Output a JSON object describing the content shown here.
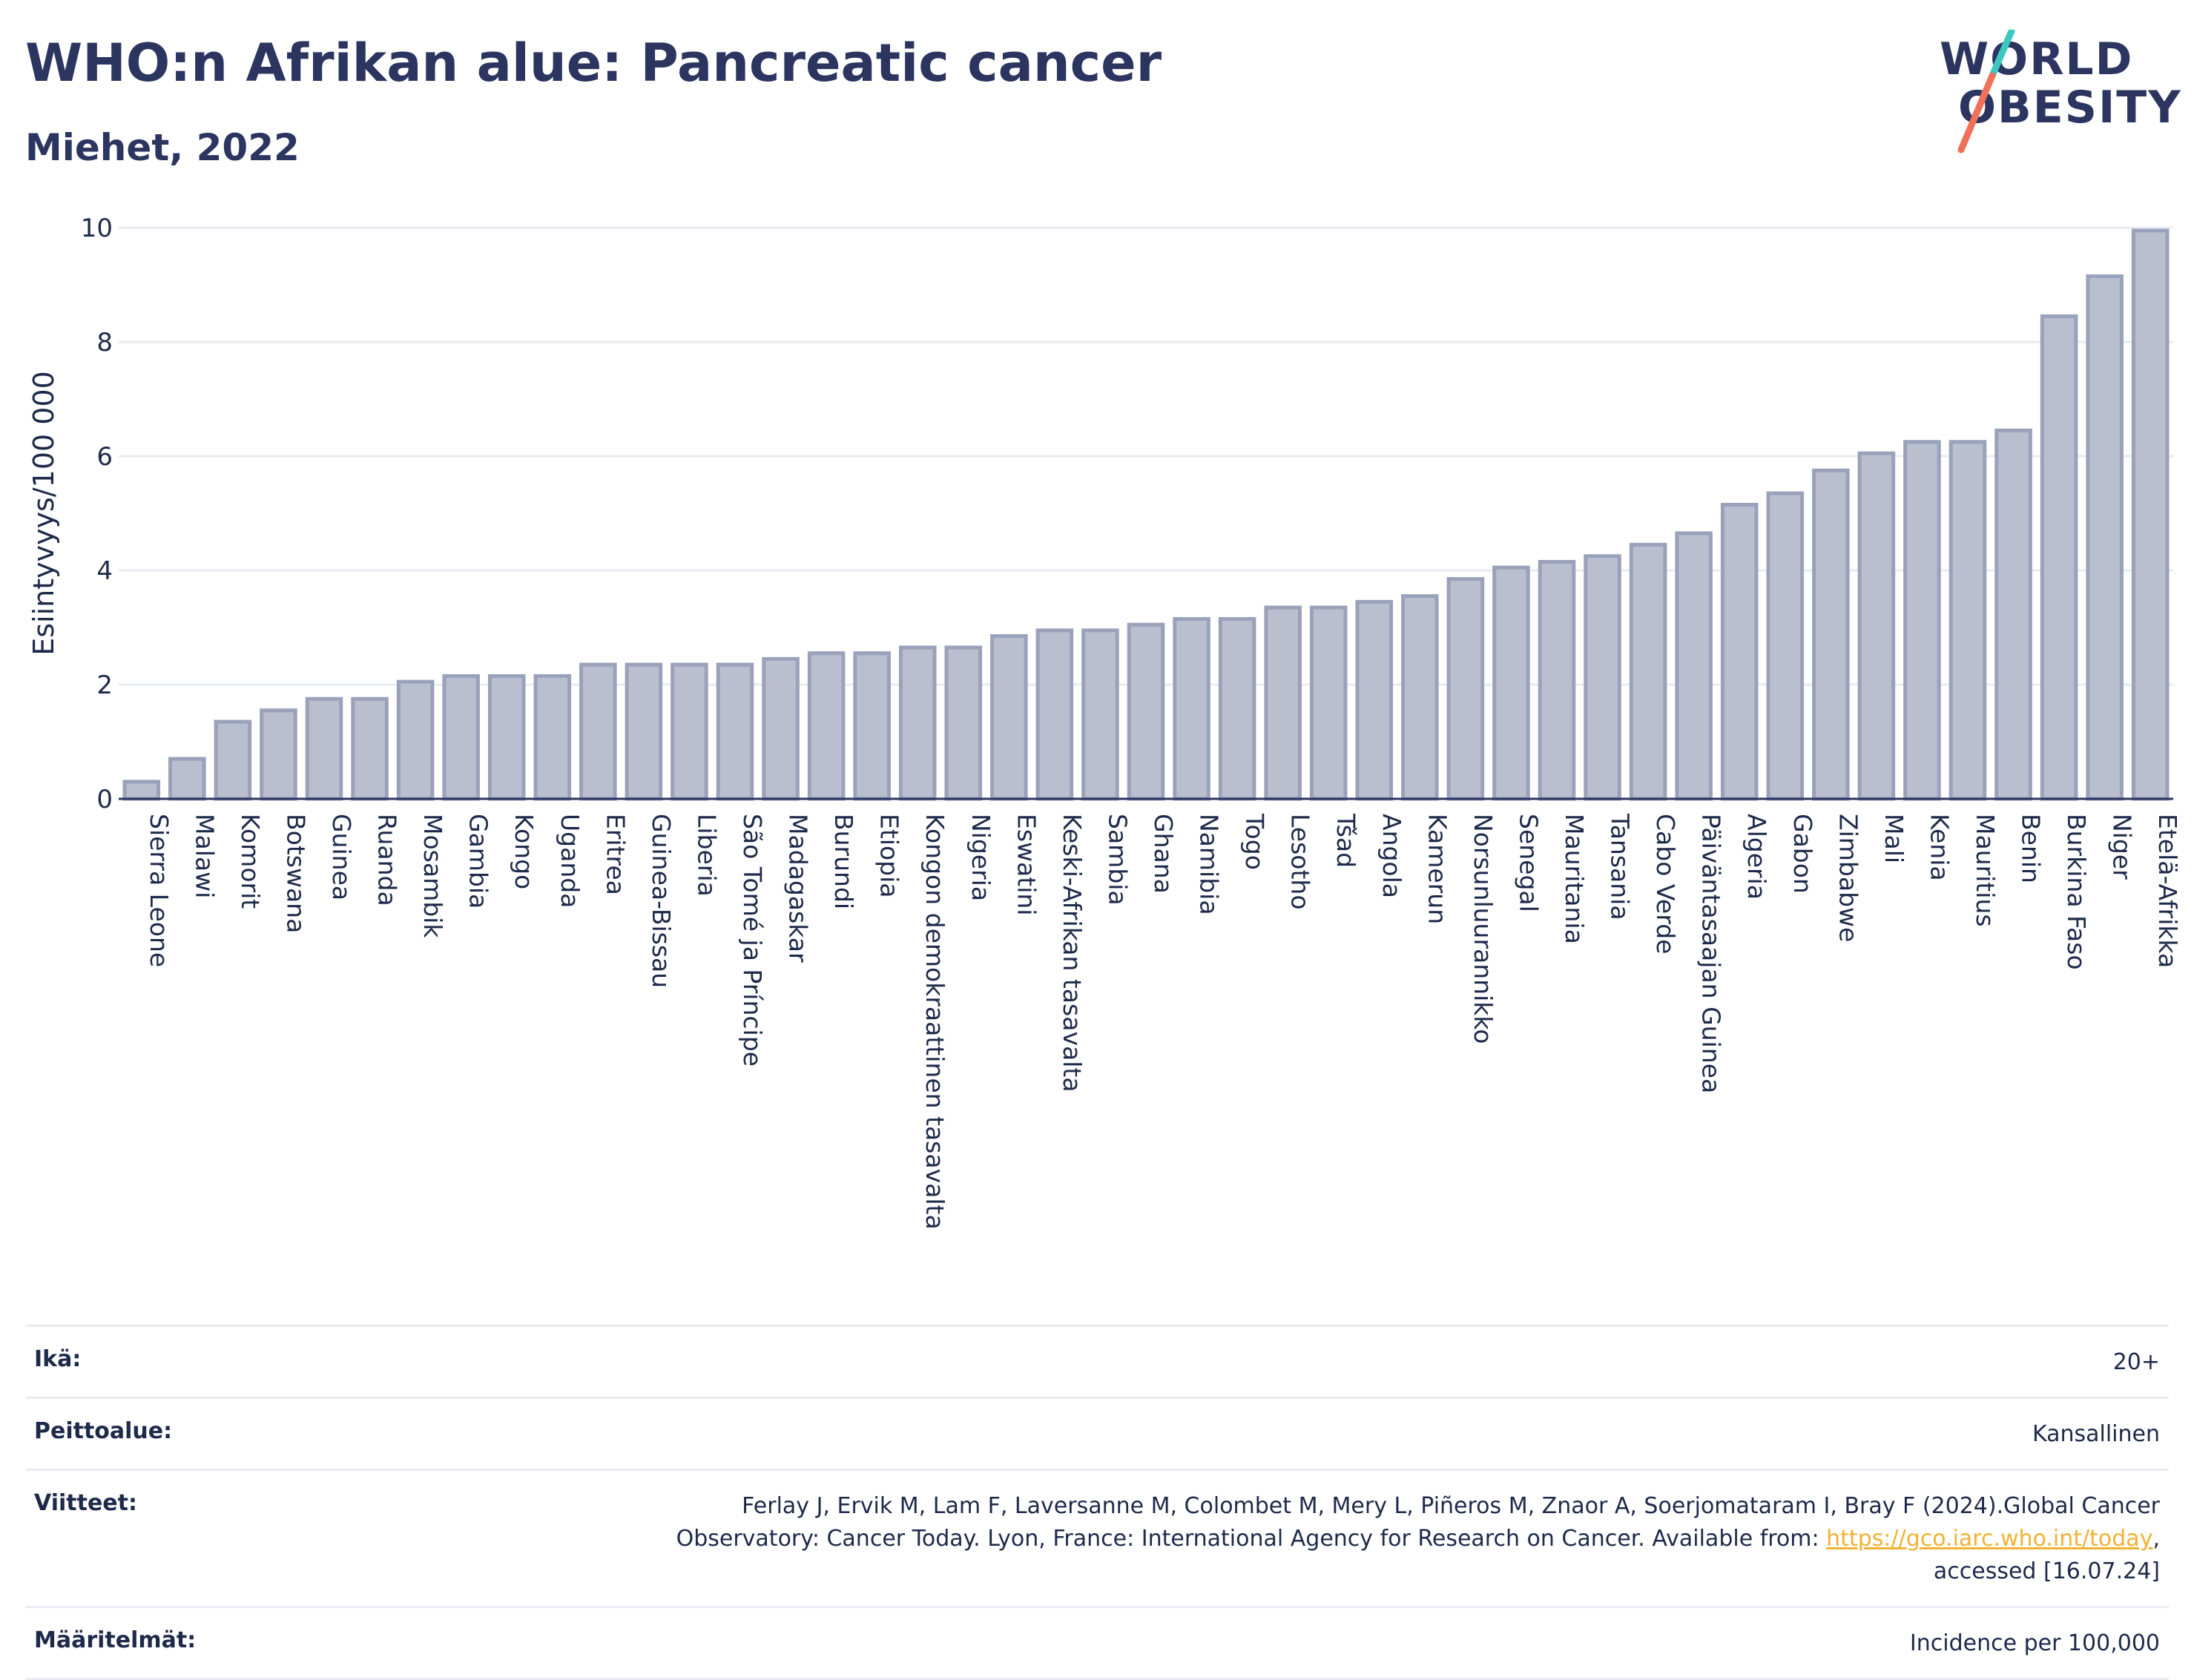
{
  "header": {
    "title": "WHO:n Afrikan alue: Pancreatic cancer",
    "subtitle": "Miehet, 2022"
  },
  "logo": {
    "line1": "WORLD",
    "line2": "OBESITY",
    "slash_colors": [
      "#3cc7c0",
      "#f0705a"
    ]
  },
  "chart_data": {
    "type": "bar",
    "ylabel": "Esiintyvyys/100 000",
    "ylim": [
      0,
      10
    ],
    "yticks": [
      "0",
      "2",
      "4",
      "6",
      "8",
      "10"
    ],
    "grid": true,
    "bar_color": "#b9bfcf",
    "bar_edge_color": "#9aa1ba",
    "categories": [
      "Sierra Leone",
      "Malawi",
      "Komorit",
      "Botswana",
      "Guinea",
      "Ruanda",
      "Mosambik",
      "Gambia",
      "Kongo",
      "Uganda",
      "Eritrea",
      "Guinea-Bissau",
      "Liberia",
      "São Tomé ja Príncipe",
      "Madagaskar",
      "Burundi",
      "Etiopia",
      "Kongon demokraattinen tasavalta",
      "Nigeria",
      "Eswatini",
      "Keski-Afrikan tasavalta",
      "Sambia",
      "Ghana",
      "Namibia",
      "Togo",
      "Lesotho",
      "Tšad",
      "Angola",
      "Kamerun",
      "Norsunluurannikko",
      "Senegal",
      "Mauritania",
      "Tansania",
      "Cabo Verde",
      "Päiväntasaajan Guinea",
      "Algeria",
      "Gabon",
      "Zimbabwe",
      "Mali",
      "Kenia",
      "Mauritius",
      "Benin",
      "Burkina Faso",
      "Niger",
      "Etelä-Afrikka"
    ],
    "values": [
      0.3,
      0.7,
      1.35,
      1.55,
      1.75,
      1.75,
      2.05,
      2.15,
      2.15,
      2.15,
      2.35,
      2.35,
      2.35,
      2.35,
      2.45,
      2.55,
      2.55,
      2.65,
      2.65,
      2.85,
      2.95,
      2.95,
      3.05,
      3.15,
      3.15,
      3.35,
      3.35,
      3.45,
      3.55,
      3.85,
      4.05,
      4.15,
      4.25,
      4.45,
      4.65,
      5.15,
      5.35,
      5.75,
      6.05,
      6.25,
      6.25,
      6.45,
      8.45,
      9.15,
      9.95
    ]
  },
  "meta": {
    "age_label": "Ikä:",
    "age_value": "20+",
    "coverage_label": "Peittoalue:",
    "coverage_value": "Kansallinen",
    "references_label": "Viitteet:",
    "references_line1": "Ferlay J, Ervik M, Lam F, Laversanne M, Colombet M, Mery L, Piñeros M, Znaor A, Soerjomataram I, Bray F (2024).Global Cancer",
    "references_line2_pre": "Observatory: Cancer Today. Lyon, France: International Agency for Research on Cancer. Available from: ",
    "references_link": "https://gco.iarc.who.int/today",
    "references_line2_post": ",",
    "references_line3": "accessed [16.07.24]",
    "definitions_label": "Määritelmät:",
    "definitions_value": "Incidence per 100,000"
  }
}
